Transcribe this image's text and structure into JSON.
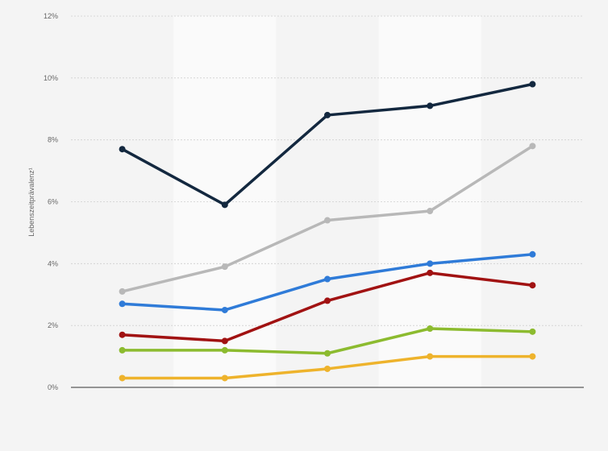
{
  "chart_data": {
    "type": "line",
    "ylabel": "Lebenszeitprävalenz¹",
    "ylim": [
      0,
      12
    ],
    "yticks": [
      "0%",
      "2%",
      "4%",
      "6%",
      "8%",
      "10%",
      "12%"
    ],
    "categories": [
      "",
      "",
      "",
      "",
      ""
    ],
    "grid": true,
    "series": [
      {
        "color": "#13283f",
        "values": [
          7.7,
          5.9,
          8.8,
          9.1,
          9.8
        ]
      },
      {
        "color": "#b8b8b8",
        "values": [
          3.1,
          3.9,
          5.4,
          5.7,
          7.8
        ]
      },
      {
        "color": "#2f7bd8",
        "values": [
          2.7,
          2.5,
          3.5,
          4.0,
          4.3
        ]
      },
      {
        "color": "#a11212",
        "values": [
          1.7,
          1.5,
          2.8,
          3.7,
          3.3
        ]
      },
      {
        "color": "#8cbb2f",
        "values": [
          1.2,
          1.2,
          1.1,
          1.9,
          1.8
        ]
      },
      {
        "color": "#eeb32c",
        "values": [
          0.3,
          0.3,
          0.6,
          1.0,
          1.0
        ]
      }
    ]
  }
}
